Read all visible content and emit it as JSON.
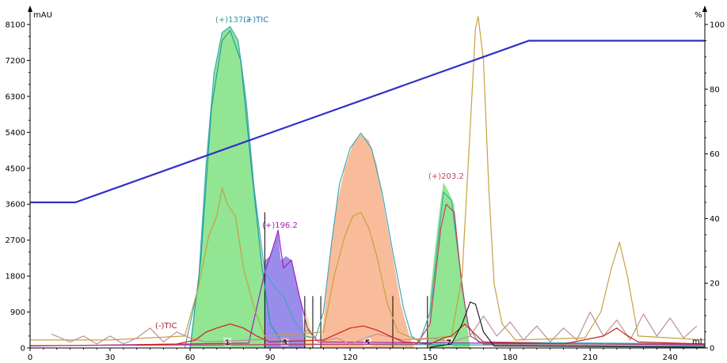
{
  "chart_data": {
    "type": "area",
    "x_unit": "ml",
    "y_left_unit": "mAU",
    "y_right_unit": "%",
    "x_range": [
      0,
      253
    ],
    "y_left_range": [
      0,
      8100
    ],
    "y_right_range": [
      0,
      100
    ],
    "x_ticks": [
      "0",
      "30",
      "60",
      "90",
      "120",
      "150",
      "180",
      "210",
      "240"
    ],
    "y_left_ticks": [
      "0",
      "900",
      "1800",
      "2700",
      "3600",
      "4500",
      "5400",
      "6300",
      "7200",
      "8100"
    ],
    "y_right_ticks": [
      "0",
      "20",
      "40",
      "60",
      "80",
      "100"
    ],
    "gradient": [
      [
        0,
        45
      ],
      [
        17,
        45
      ],
      [
        187,
        95
      ],
      [
        253,
        95
      ]
    ],
    "fractions": [
      {
        "label": "1",
        "color": "#7fe07f",
        "points": [
          [
            60,
            0
          ],
          [
            63,
            1500
          ],
          [
            66,
            4600
          ],
          [
            69,
            6900
          ],
          [
            72,
            7900
          ],
          [
            75,
            8050
          ],
          [
            78,
            7700
          ],
          [
            81,
            6200
          ],
          [
            84,
            4000
          ],
          [
            87,
            2200
          ],
          [
            88,
            1800
          ],
          [
            88,
            0
          ]
        ]
      },
      {
        "label": "3",
        "color": "#8878e8",
        "points": [
          [
            88,
            0
          ],
          [
            88,
            2200
          ],
          [
            90,
            2300
          ],
          [
            92,
            2700
          ],
          [
            93,
            2900
          ],
          [
            94,
            2200
          ],
          [
            96,
            2300
          ],
          [
            98,
            2200
          ],
          [
            100,
            1600
          ],
          [
            102,
            1050
          ],
          [
            103,
            0
          ]
        ]
      },
      {
        "label": "",
        "color": "#f0e890",
        "points": [
          [
            103,
            0
          ],
          [
            103,
            1000
          ],
          [
            105,
            600
          ],
          [
            106,
            0
          ]
        ]
      },
      {
        "label": "5",
        "color": "#f8b088",
        "points": [
          [
            109,
            0
          ],
          [
            112,
            2000
          ],
          [
            115,
            3600
          ],
          [
            118,
            4500
          ],
          [
            121,
            5100
          ],
          [
            124,
            5350
          ],
          [
            127,
            5200
          ],
          [
            130,
            4600
          ],
          [
            133,
            3400
          ],
          [
            136,
            2300
          ],
          [
            139,
            1100
          ],
          [
            142,
            350
          ],
          [
            144,
            0
          ]
        ]
      },
      {
        "label": "7",
        "color": "#7fe07f",
        "points": [
          [
            149,
            0
          ],
          [
            150,
            1300
          ],
          [
            152,
            2600
          ],
          [
            154,
            3700
          ],
          [
            155,
            4150
          ],
          [
            157,
            3900
          ],
          [
            159,
            3600
          ],
          [
            161,
            2300
          ],
          [
            163,
            1000
          ],
          [
            165,
            0
          ]
        ]
      }
    ],
    "fraction_cuts": [
      88,
      103,
      106,
      109,
      136,
      149
    ],
    "series": [
      {
        "name": "(+)TIC",
        "color": "#40a8b8",
        "points": [
          [
            58,
            0
          ],
          [
            63,
            1500
          ],
          [
            66,
            4600
          ],
          [
            69,
            6900
          ],
          [
            72,
            7900
          ],
          [
            75,
            8050
          ],
          [
            78,
            7700
          ],
          [
            81,
            6200
          ],
          [
            84,
            4000
          ],
          [
            88,
            1900
          ],
          [
            92,
            1500
          ],
          [
            95,
            1300
          ],
          [
            99,
            700
          ],
          [
            103,
            300
          ],
          [
            107,
            250
          ],
          [
            110,
            900
          ],
          [
            113,
            2600
          ],
          [
            116,
            4100
          ],
          [
            120,
            5000
          ],
          [
            124,
            5380
          ],
          [
            128,
            5000
          ],
          [
            132,
            3900
          ],
          [
            136,
            2400
          ],
          [
            140,
            1000
          ],
          [
            143,
            300
          ],
          [
            146,
            150
          ],
          [
            150,
            900
          ],
          [
            153,
            2700
          ],
          [
            155,
            3900
          ],
          [
            158,
            3700
          ],
          [
            161,
            2100
          ],
          [
            164,
            600
          ],
          [
            168,
            150
          ],
          [
            253,
            100
          ]
        ]
      },
      {
        "name": "(+)137.2",
        "color": "#20a0a0",
        "points": [
          [
            60,
            0
          ],
          [
            64,
            2200
          ],
          [
            68,
            6000
          ],
          [
            72,
            7700
          ],
          [
            75,
            7950
          ],
          [
            79,
            7200
          ],
          [
            83,
            4500
          ],
          [
            87,
            2000
          ],
          [
            90,
            600
          ],
          [
            95,
            100
          ],
          [
            253,
            50
          ]
        ]
      },
      {
        "name": "(+)196.2",
        "color": "#a020c0",
        "points": [
          [
            0,
            50
          ],
          [
            82,
            120
          ],
          [
            88,
            1900
          ],
          [
            91,
            2500
          ],
          [
            93,
            2950
          ],
          [
            95,
            2000
          ],
          [
            98,
            2200
          ],
          [
            101,
            1300
          ],
          [
            104,
            500
          ],
          [
            108,
            150
          ],
          [
            253,
            80
          ]
        ]
      },
      {
        "name": "(+)203.2",
        "color": "#c04060",
        "points": [
          [
            0,
            60
          ],
          [
            145,
            100
          ],
          [
            150,
            600
          ],
          [
            154,
            3000
          ],
          [
            156,
            3600
          ],
          [
            159,
            3400
          ],
          [
            162,
            1500
          ],
          [
            165,
            300
          ],
          [
            170,
            100
          ],
          [
            253,
            100
          ]
        ]
      },
      {
        "name": "",
        "color": "#c8a040",
        "points": [
          [
            0,
            200
          ],
          [
            30,
            200
          ],
          [
            58,
            300
          ],
          [
            63,
            1500
          ],
          [
            67,
            2800
          ],
          [
            70,
            3300
          ],
          [
            72,
            4000
          ],
          [
            74,
            3600
          ],
          [
            77,
            3300
          ],
          [
            80,
            2000
          ],
          [
            84,
            1000
          ],
          [
            88,
            300
          ],
          [
            110,
            400
          ],
          [
            114,
            1800
          ],
          [
            118,
            2800
          ],
          [
            121,
            3300
          ],
          [
            124,
            3400
          ],
          [
            127,
            3000
          ],
          [
            130,
            2300
          ],
          [
            134,
            1100
          ],
          [
            138,
            400
          ],
          [
            145,
            200
          ],
          [
            158,
            300
          ],
          [
            162,
            1800
          ],
          [
            165,
            5500
          ],
          [
            167,
            8000
          ],
          [
            168,
            8300
          ],
          [
            170,
            7200
          ],
          [
            172,
            4000
          ],
          [
            174,
            1600
          ],
          [
            177,
            600
          ],
          [
            182,
            200
          ],
          [
            208,
            250
          ],
          [
            214,
            900
          ],
          [
            218,
            2000
          ],
          [
            221,
            2650
          ],
          [
            224,
            1800
          ],
          [
            228,
            300
          ],
          [
            253,
            200
          ]
        ]
      },
      {
        "name": "",
        "color": "#c09090",
        "points": [
          [
            8,
            350
          ],
          [
            15,
            150
          ],
          [
            20,
            300
          ],
          [
            25,
            100
          ],
          [
            30,
            300
          ],
          [
            35,
            100
          ],
          [
            40,
            250
          ],
          [
            45,
            500
          ],
          [
            50,
            150
          ],
          [
            55,
            400
          ],
          [
            60,
            250
          ],
          [
            66,
            150
          ],
          [
            100,
            250
          ],
          [
            104,
            450
          ],
          [
            108,
            150
          ],
          [
            115,
            250
          ],
          [
            120,
            100
          ],
          [
            130,
            350
          ],
          [
            140,
            200
          ],
          [
            150,
            250
          ],
          [
            158,
            150
          ],
          [
            165,
            300
          ],
          [
            170,
            800
          ],
          [
            175,
            300
          ],
          [
            180,
            650
          ],
          [
            185,
            200
          ],
          [
            190,
            550
          ],
          [
            195,
            150
          ],
          [
            200,
            500
          ],
          [
            205,
            200
          ],
          [
            210,
            900
          ],
          [
            215,
            300
          ],
          [
            220,
            700
          ],
          [
            225,
            200
          ],
          [
            230,
            850
          ],
          [
            235,
            300
          ],
          [
            240,
            750
          ],
          [
            245,
            250
          ],
          [
            250,
            550
          ]
        ]
      },
      {
        "name": "(-)TIC",
        "color": "#d02020",
        "points": [
          [
            40,
            80
          ],
          [
            55,
            100
          ],
          [
            62,
            200
          ],
          [
            66,
            400
          ],
          [
            70,
            500
          ],
          [
            75,
            600
          ],
          [
            80,
            500
          ],
          [
            85,
            300
          ],
          [
            90,
            150
          ],
          [
            110,
            200
          ],
          [
            115,
            350
          ],
          [
            120,
            500
          ],
          [
            125,
            550
          ],
          [
            130,
            450
          ],
          [
            135,
            300
          ],
          [
            140,
            150
          ],
          [
            150,
            100
          ],
          [
            155,
            250
          ],
          [
            158,
            300
          ],
          [
            163,
            600
          ],
          [
            166,
            400
          ],
          [
            170,
            150
          ],
          [
            200,
            100
          ],
          [
            215,
            300
          ],
          [
            220,
            500
          ],
          [
            223,
            350
          ],
          [
            228,
            150
          ],
          [
            253,
            100
          ]
        ]
      },
      {
        "name": "",
        "color": "#202020",
        "points": [
          [
            150,
            20
          ],
          [
            158,
            100
          ],
          [
            162,
            600
          ],
          [
            165,
            1150
          ],
          [
            167,
            1100
          ],
          [
            170,
            400
          ],
          [
            174,
            50
          ],
          [
            253,
            20
          ]
        ]
      }
    ],
    "labels": [
      {
        "text": "(+)137.2",
        "color": "#20a0a0"
      },
      {
        "text": "(+)TIC",
        "color": "#3070b0"
      },
      {
        "text": "(+)196.2",
        "color": "#a020c0"
      },
      {
        "text": "(+)203.2",
        "color": "#c04060"
      },
      {
        "text": "(-)TIC",
        "color": "#a02030"
      }
    ],
    "gradient_color": "#3030c8"
  }
}
